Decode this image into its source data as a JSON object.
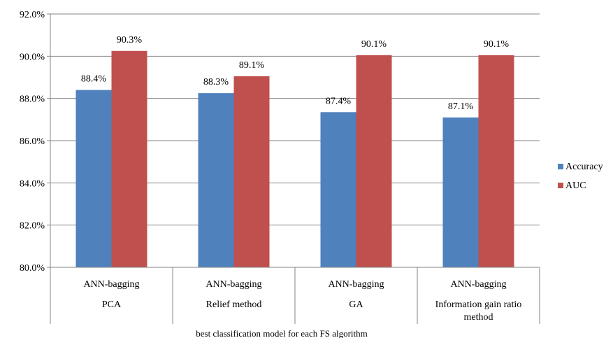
{
  "chart_data": {
    "type": "bar",
    "title": "",
    "xlabel": "best classification model for each FS algorithm",
    "ylabel": "",
    "ylim": [
      80,
      92
    ],
    "ytick_step": 2,
    "ytick_labels": [
      "80.0%",
      "82.0%",
      "84.0%",
      "86.0%",
      "88.0%",
      "90.0%",
      "92.0%"
    ],
    "grid": true,
    "legend_position": "right",
    "categories": [
      {
        "model": "ANN-bagging",
        "algorithm_lines": [
          "PCA"
        ]
      },
      {
        "model": "ANN-bagging",
        "algorithm_lines": [
          "Relief method"
        ]
      },
      {
        "model": "ANN-bagging",
        "algorithm_lines": [
          "GA"
        ]
      },
      {
        "model": "ANN-bagging",
        "algorithm_lines": [
          "Information gain ratio",
          "method"
        ]
      }
    ],
    "series": [
      {
        "name": "Accuracy",
        "color": "#4F81BD",
        "values": [
          88.4,
          88.25,
          87.35,
          87.1
        ],
        "labels": [
          "88.4%",
          "88.3%",
          "87.4%",
          "87.1%"
        ]
      },
      {
        "name": "AUC",
        "color": "#C0504D",
        "values": [
          90.25,
          89.05,
          90.05,
          90.05
        ],
        "labels": [
          "90.3%",
          "89.1%",
          "90.1%",
          "90.1%"
        ]
      }
    ]
  }
}
